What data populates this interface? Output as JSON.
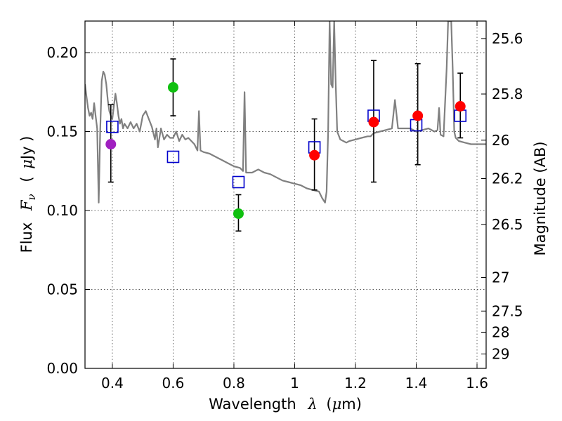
{
  "chart_data": {
    "type": "scatter",
    "title": "",
    "xlabel": "Wavelength  λ (μm)",
    "xlabel_parts": {
      "name": "Wavelength",
      "symbol": "λ",
      "unit_open": "(",
      "unit_mu": "μ",
      "unit_rest": "m)"
    },
    "ylabel": "Flux  Fν  ( μJy )",
    "ylabel_parts": {
      "name": "Flux",
      "symbol": "F",
      "sub": "ν",
      "unit_open": "(",
      "unit_mu": "μ",
      "unit_rest": "Jy )"
    },
    "y2label": "Magnitude (AB)",
    "xlim": [
      0.31,
      1.63
    ],
    "ylim": [
      0.0,
      0.22
    ],
    "grid": true,
    "x_ticks": [
      {
        "value": 0.4,
        "label": "0.4"
      },
      {
        "value": 0.6,
        "label": "0.6"
      },
      {
        "value": 0.8,
        "label": "0.8"
      },
      {
        "value": 1.0,
        "label": "1"
      },
      {
        "value": 1.2,
        "label": "1.2"
      },
      {
        "value": 1.4,
        "label": "1.4"
      },
      {
        "value": 1.6,
        "label": "1.6"
      }
    ],
    "y_ticks": [
      {
        "value": 0.0,
        "label": "0.00"
      },
      {
        "value": 0.05,
        "label": "0.05"
      },
      {
        "value": 0.1,
        "label": "0.10"
      },
      {
        "value": 0.15,
        "label": "0.15"
      },
      {
        "value": 0.2,
        "label": "0.20"
      }
    ],
    "y2_ticks": [
      {
        "mag": 25.6,
        "label": "25.6"
      },
      {
        "mag": 25.8,
        "label": "25.8"
      },
      {
        "mag": 26.0,
        "label": "26"
      },
      {
        "mag": 26.2,
        "label": "26.2"
      },
      {
        "mag": 26.5,
        "label": "26.5"
      },
      {
        "mag": 27.0,
        "label": "27"
      },
      {
        "mag": 27.5,
        "label": "27.5"
      },
      {
        "mag": 28.0,
        "label": "28"
      },
      {
        "mag": 29.0,
        "label": "29"
      }
    ],
    "observed": [
      {
        "x": 0.395,
        "y": 0.142,
        "yerr_low": 0.118,
        "yerr_high": 0.167,
        "color": "#a020c0"
      },
      {
        "x": 0.6,
        "y": 0.178,
        "yerr_low": 0.16,
        "yerr_high": 0.196,
        "color": "#10c010"
      },
      {
        "x": 0.815,
        "y": 0.098,
        "yerr_low": 0.087,
        "yerr_high": 0.11,
        "color": "#10c010"
      },
      {
        "x": 1.065,
        "y": 0.135,
        "yerr_low": 0.113,
        "yerr_high": 0.158,
        "color": "#ff0000"
      },
      {
        "x": 1.26,
        "y": 0.156,
        "yerr_low": 0.118,
        "yerr_high": 0.195,
        "color": "#ff0000"
      },
      {
        "x": 1.405,
        "y": 0.16,
        "yerr_low": 0.129,
        "yerr_high": 0.193,
        "color": "#ff0000"
      },
      {
        "x": 1.545,
        "y": 0.166,
        "yerr_low": 0.146,
        "yerr_high": 0.187,
        "color": "#ff0000"
      }
    ],
    "model_photometry": [
      {
        "x": 0.4,
        "y": 0.153
      },
      {
        "x": 0.6,
        "y": 0.134
      },
      {
        "x": 0.815,
        "y": 0.118
      },
      {
        "x": 1.065,
        "y": 0.14
      },
      {
        "x": 1.26,
        "y": 0.16
      },
      {
        "x": 1.4,
        "y": 0.154
      },
      {
        "x": 1.545,
        "y": 0.16
      }
    ],
    "model_photometry_color": "#0000cc",
    "sed_color": "#808080",
    "sed": [
      [
        0.31,
        0.18
      ],
      [
        0.315,
        0.172
      ],
      [
        0.32,
        0.165
      ],
      [
        0.325,
        0.16
      ],
      [
        0.33,
        0.162
      ],
      [
        0.335,
        0.158
      ],
      [
        0.34,
        0.168
      ],
      [
        0.345,
        0.16
      ],
      [
        0.35,
        0.152
      ],
      [
        0.355,
        0.105
      ],
      [
        0.36,
        0.15
      ],
      [
        0.365,
        0.182
      ],
      [
        0.37,
        0.188
      ],
      [
        0.375,
        0.186
      ],
      [
        0.38,
        0.18
      ],
      [
        0.385,
        0.17
      ],
      [
        0.39,
        0.163
      ],
      [
        0.395,
        0.16
      ],
      [
        0.4,
        0.158
      ],
      [
        0.405,
        0.166
      ],
      [
        0.41,
        0.174
      ],
      [
        0.415,
        0.168
      ],
      [
        0.42,
        0.16
      ],
      [
        0.425,
        0.155
      ],
      [
        0.43,
        0.158
      ],
      [
        0.435,
        0.152
      ],
      [
        0.44,
        0.155
      ],
      [
        0.45,
        0.152
      ],
      [
        0.46,
        0.156
      ],
      [
        0.47,
        0.152
      ],
      [
        0.48,
        0.155
      ],
      [
        0.49,
        0.15
      ],
      [
        0.5,
        0.16
      ],
      [
        0.51,
        0.163
      ],
      [
        0.52,
        0.158
      ],
      [
        0.53,
        0.153
      ],
      [
        0.54,
        0.145
      ],
      [
        0.545,
        0.152
      ],
      [
        0.55,
        0.14
      ],
      [
        0.56,
        0.152
      ],
      [
        0.57,
        0.145
      ],
      [
        0.58,
        0.148
      ],
      [
        0.59,
        0.146
      ],
      [
        0.6,
        0.146
      ],
      [
        0.61,
        0.15
      ],
      [
        0.62,
        0.144
      ],
      [
        0.63,
        0.148
      ],
      [
        0.64,
        0.145
      ],
      [
        0.65,
        0.146
      ],
      [
        0.66,
        0.144
      ],
      [
        0.67,
        0.142
      ],
      [
        0.68,
        0.138
      ],
      [
        0.685,
        0.163
      ],
      [
        0.69,
        0.138
      ],
      [
        0.7,
        0.137
      ],
      [
        0.72,
        0.136
      ],
      [
        0.74,
        0.134
      ],
      [
        0.76,
        0.132
      ],
      [
        0.78,
        0.13
      ],
      [
        0.8,
        0.128
      ],
      [
        0.82,
        0.127
      ],
      [
        0.83,
        0.125
      ],
      [
        0.835,
        0.175
      ],
      [
        0.84,
        0.124
      ],
      [
        0.86,
        0.124
      ],
      [
        0.88,
        0.126
      ],
      [
        0.9,
        0.124
      ],
      [
        0.92,
        0.123
      ],
      [
        0.94,
        0.121
      ],
      [
        0.96,
        0.119
      ],
      [
        0.98,
        0.118
      ],
      [
        1.0,
        0.117
      ],
      [
        1.02,
        0.116
      ],
      [
        1.04,
        0.114
      ],
      [
        1.06,
        0.113
      ],
      [
        1.08,
        0.112
      ],
      [
        1.09,
        0.108
      ],
      [
        1.1,
        0.105
      ],
      [
        1.105,
        0.112
      ],
      [
        1.11,
        0.15
      ],
      [
        1.115,
        0.22
      ],
      [
        1.12,
        0.18
      ],
      [
        1.125,
        0.178
      ],
      [
        1.13,
        0.22
      ],
      [
        1.135,
        0.18
      ],
      [
        1.14,
        0.15
      ],
      [
        1.15,
        0.145
      ],
      [
        1.16,
        0.144
      ],
      [
        1.17,
        0.143
      ],
      [
        1.18,
        0.144
      ],
      [
        1.2,
        0.145
      ],
      [
        1.22,
        0.146
      ],
      [
        1.24,
        0.147
      ],
      [
        1.25,
        0.147
      ],
      [
        1.26,
        0.149
      ],
      [
        1.28,
        0.15
      ],
      [
        1.3,
        0.151
      ],
      [
        1.32,
        0.152
      ],
      [
        1.33,
        0.17
      ],
      [
        1.34,
        0.152
      ],
      [
        1.36,
        0.152
      ],
      [
        1.38,
        0.152
      ],
      [
        1.4,
        0.15
      ],
      [
        1.42,
        0.151
      ],
      [
        1.44,
        0.152
      ],
      [
        1.46,
        0.15
      ],
      [
        1.47,
        0.151
      ],
      [
        1.475,
        0.165
      ],
      [
        1.48,
        0.148
      ],
      [
        1.49,
        0.147
      ],
      [
        1.5,
        0.19
      ],
      [
        1.505,
        0.22
      ],
      [
        1.515,
        0.22
      ],
      [
        1.52,
        0.19
      ],
      [
        1.525,
        0.15
      ],
      [
        1.53,
        0.146
      ],
      [
        1.54,
        0.144
      ],
      [
        1.56,
        0.143
      ],
      [
        1.58,
        0.142
      ],
      [
        1.6,
        0.142
      ],
      [
        1.63,
        0.142
      ]
    ]
  }
}
